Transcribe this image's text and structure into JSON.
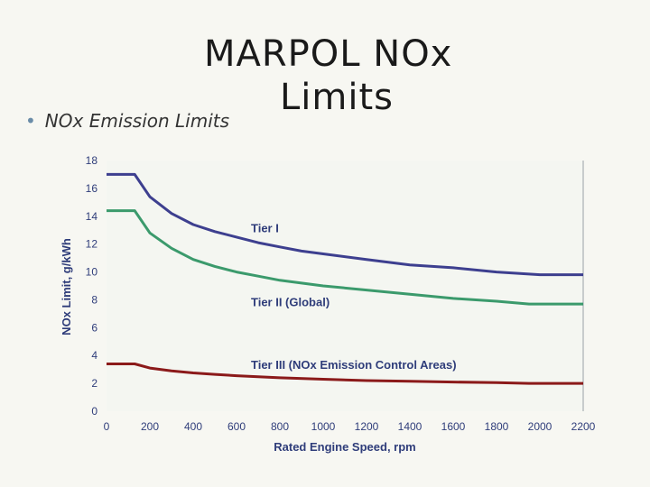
{
  "slide": {
    "title_line1": "MARPOL NOx",
    "title_line2": "Limits",
    "bullet": "NOx Emission Limits"
  },
  "chart_data": {
    "type": "line",
    "title": "",
    "xlabel": "Rated Engine Speed, rpm",
    "ylabel": "NOx Limit, g/kWh",
    "xlim": [
      0,
      2200
    ],
    "ylim": [
      0,
      18
    ],
    "x_ticks": [
      "0",
      "200",
      "400",
      "600",
      "800",
      "1000",
      "1200",
      "1400",
      "1600",
      "1800",
      "2000",
      "2200"
    ],
    "y_ticks": [
      "0",
      "2",
      "4",
      "6",
      "8",
      "10",
      "12",
      "14",
      "16",
      "18"
    ],
    "series": [
      {
        "name": "Tier I",
        "color": "#3d3f8f",
        "x": [
          0,
          130,
          200,
          300,
          400,
          500,
          600,
          700,
          800,
          900,
          1000,
          1200,
          1400,
          1600,
          1800,
          1950,
          2000,
          2200
        ],
        "y": [
          17,
          17,
          15.4,
          14.2,
          13.4,
          12.9,
          12.5,
          12.1,
          11.8,
          11.5,
          11.3,
          10.9,
          10.5,
          10.3,
          10.0,
          9.85,
          9.8,
          9.8
        ]
      },
      {
        "name": "Tier II (Global)",
        "color": "#3b9a6c",
        "x": [
          0,
          130,
          200,
          300,
          400,
          500,
          600,
          700,
          800,
          900,
          1000,
          1200,
          1400,
          1600,
          1800,
          1950,
          2000,
          2200
        ],
        "y": [
          14.4,
          14.4,
          12.8,
          11.7,
          10.9,
          10.4,
          10.0,
          9.7,
          9.4,
          9.2,
          9.0,
          8.7,
          8.4,
          8.1,
          7.9,
          7.7,
          7.7,
          7.7
        ]
      },
      {
        "name": "Tier III (NOx Emission Control Areas)",
        "color": "#8b1a1a",
        "x": [
          0,
          130,
          200,
          300,
          400,
          500,
          600,
          800,
          1000,
          1200,
          1400,
          1600,
          1800,
          1950,
          2000,
          2200
        ],
        "y": [
          3.4,
          3.4,
          3.1,
          2.9,
          2.75,
          2.65,
          2.55,
          2.4,
          2.3,
          2.2,
          2.15,
          2.1,
          2.05,
          2.0,
          2.0,
          2.0
        ]
      }
    ],
    "annotations": [
      {
        "text": "Tier I",
        "series": 0
      },
      {
        "text": "Tier II (Global)",
        "series": 1
      },
      {
        "text": "Tier III (NOx Emission Control Areas)",
        "series": 2
      }
    ]
  }
}
